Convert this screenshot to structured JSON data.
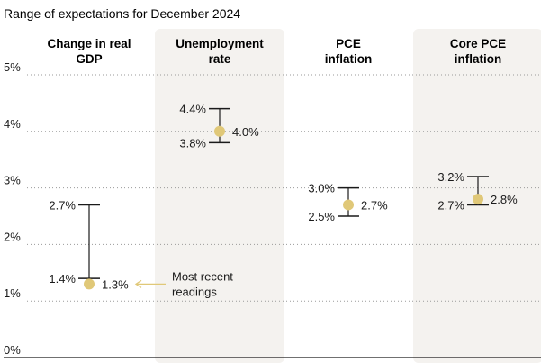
{
  "chart_data": {
    "type": "range",
    "title": "Range of expectations for December 2024",
    "ylim": [
      0,
      5
    ],
    "yticks": [
      "0%",
      "1%",
      "2%",
      "3%",
      "4%",
      "5%"
    ],
    "grid": true,
    "series": [
      {
        "name_lines": [
          "Change in real",
          "GDP"
        ],
        "high": 2.7,
        "low": 1.4,
        "recent": 1.3,
        "high_label": "2.7%",
        "low_label": "1.4%",
        "recent_label": "1.3%",
        "shaded": false
      },
      {
        "name_lines": [
          "Unemployment",
          "rate"
        ],
        "high": 4.4,
        "low": 3.8,
        "recent": 4.0,
        "high_label": "4.4%",
        "low_label": "3.8%",
        "recent_label": "4.0%",
        "shaded": true
      },
      {
        "name_lines": [
          "PCE",
          "inflation"
        ],
        "high": 3.0,
        "low": 2.5,
        "recent": 2.7,
        "high_label": "3.0%",
        "low_label": "2.5%",
        "recent_label": "2.7%",
        "shaded": false
      },
      {
        "name_lines": [
          "Core PCE",
          "inflation"
        ],
        "high": 3.2,
        "low": 2.7,
        "recent": 2.8,
        "high_label": "3.2%",
        "low_label": "2.7%",
        "recent_label": "2.8%",
        "shaded": true
      }
    ],
    "annotation": {
      "lines": [
        "Most recent",
        "readings"
      ]
    }
  },
  "colors": {
    "shade": "#f4f2ef",
    "marker": "#e0c878",
    "arrow": "#e0c878",
    "grid": "#9a9a9a",
    "axis": "#1a1a1a"
  }
}
